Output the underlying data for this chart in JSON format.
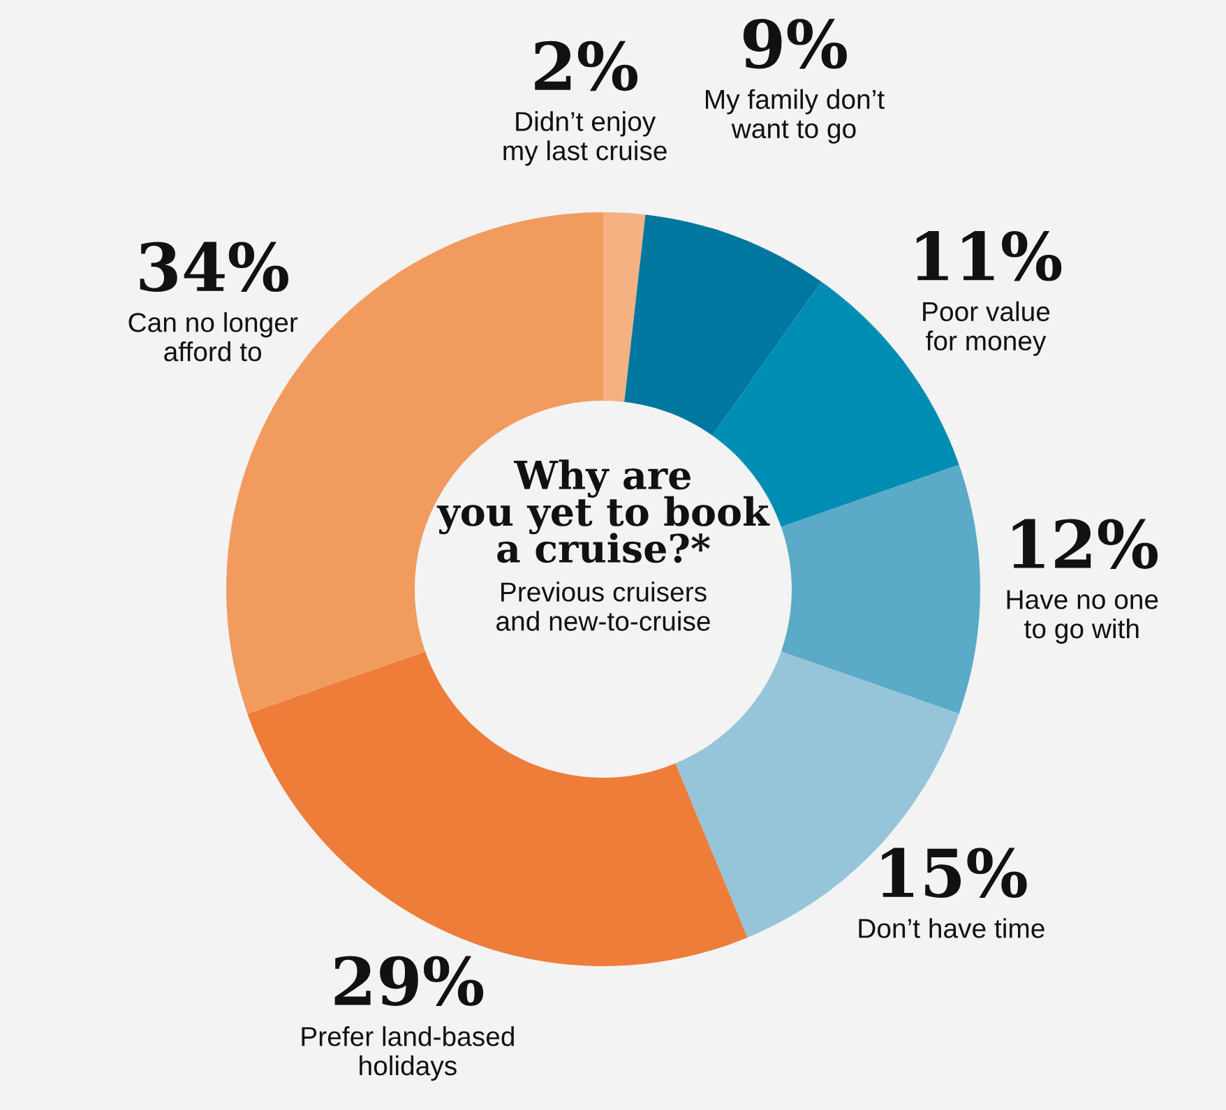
{
  "chart_data": {
    "type": "donut",
    "title": "Why are\nyou yet to book\na cruise?*",
    "subtitle": "Previous cruisers\nand new-to-cruise",
    "categories": [
      "Didn’t enjoy\nmy last cruise",
      "My family don’t\nwant to go",
      "Poor value\nfor money",
      "Have no one\nto go with",
      "Don’t have time",
      "Prefer land-based\nholidays",
      "Can no longer\nafford to"
    ],
    "values": [
      2,
      9,
      11,
      12,
      15,
      29,
      34
    ],
    "colors": [
      "#f6b183",
      "#00779f",
      "#008db3",
      "#5aaac8",
      "#96c4d9",
      "#ee7d3a",
      "#f29b5f"
    ],
    "value_labels": [
      "2%",
      "9%",
      "11%",
      "12%",
      "15%",
      "29%",
      "34%"
    ]
  }
}
